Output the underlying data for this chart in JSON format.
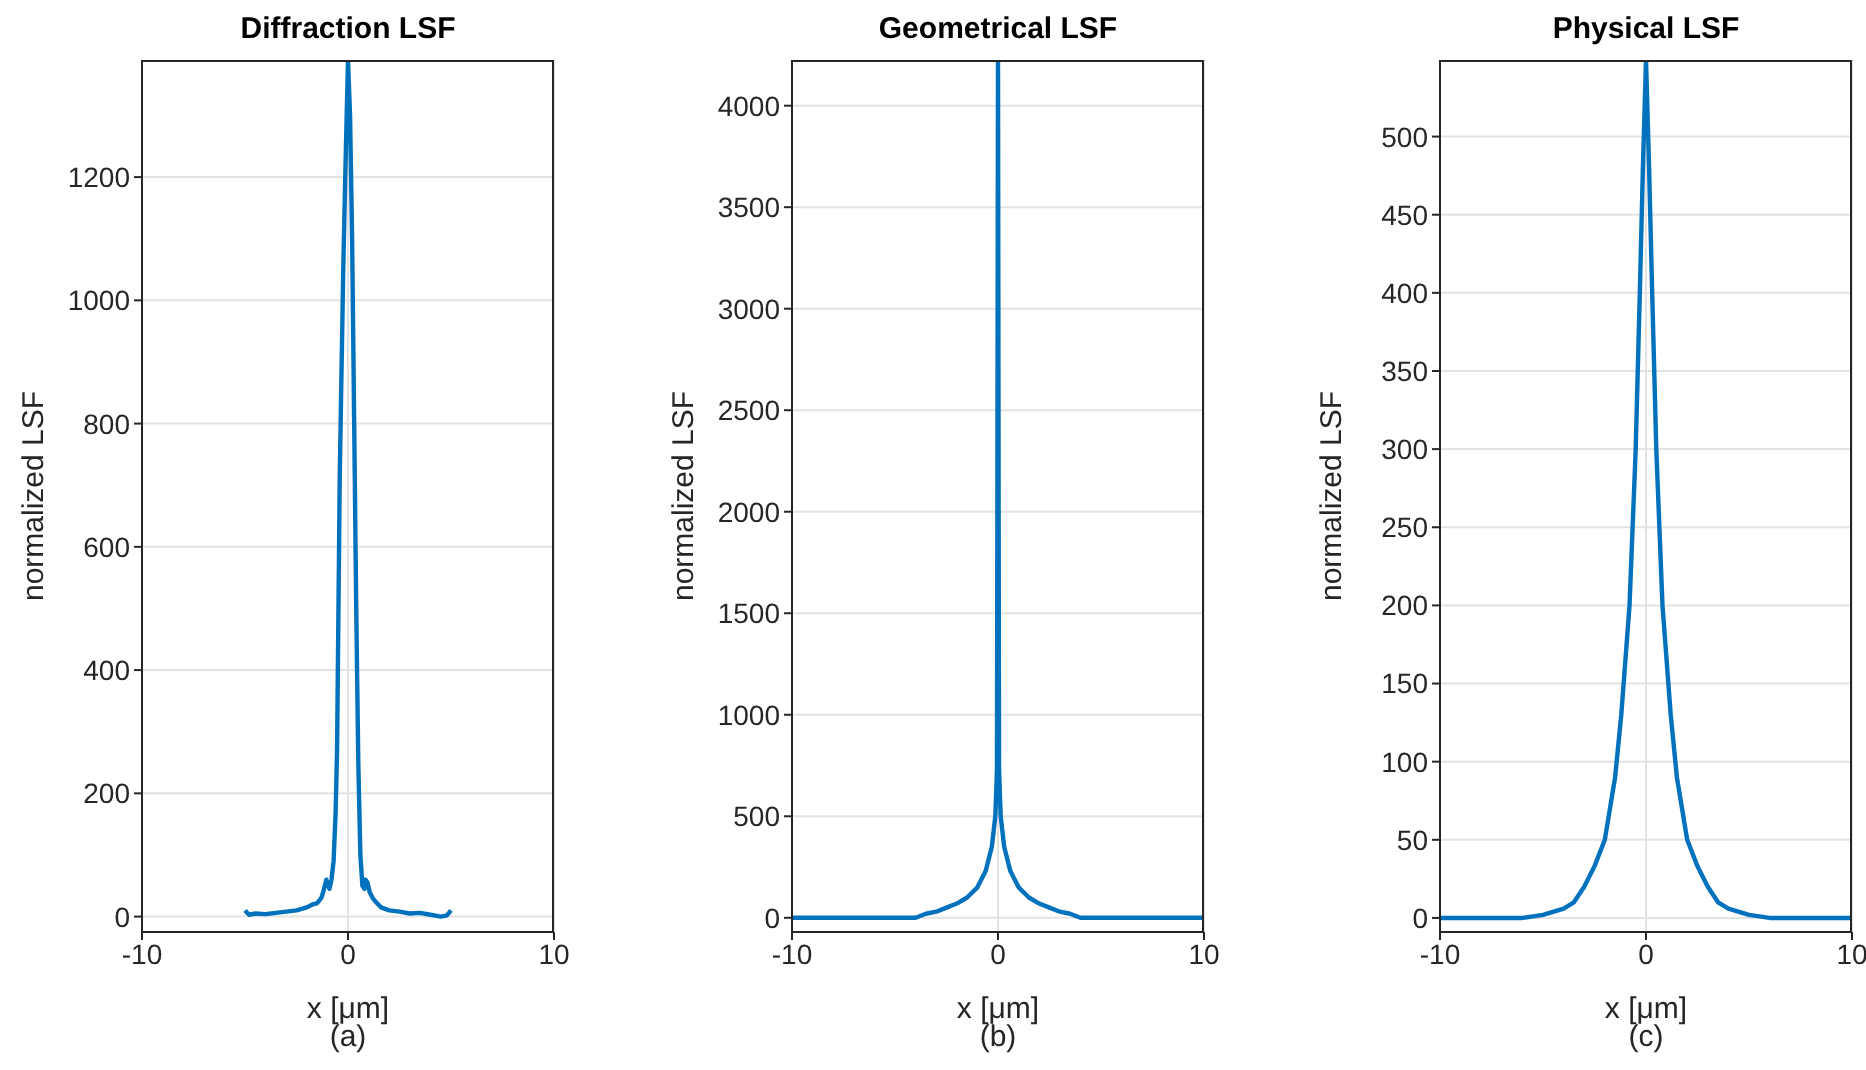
{
  "chart_data": [
    {
      "type": "line",
      "title": "Diffraction LSF",
      "xlabel": "x [μm]",
      "ylabel": "normalized LSF",
      "annotations": [
        "(a)"
      ],
      "xlim": [
        -10,
        10
      ],
      "xticks": [
        -10,
        0,
        10
      ],
      "ylim": [
        -25,
        1390
      ],
      "yticks": [
        0,
        200,
        400,
        600,
        800,
        1000,
        1200
      ],
      "grid": true,
      "series": [
        {
          "color": "#0072bd",
          "x": [
            -5,
            -4.8,
            -4.5,
            -4,
            -3.5,
            -3,
            -2.5,
            -2,
            -1.7,
            -1.5,
            -1.3,
            -1.2,
            -1.05,
            -1,
            -0.9,
            -0.8,
            -0.7,
            -0.6,
            -0.53,
            -0.4,
            -0.23,
            -0.1,
            0,
            0.1,
            0.2,
            0.3,
            0.4,
            0.5,
            0.6,
            0.7,
            0.8,
            0.85,
            0.95,
            1.05,
            1.2,
            1.4,
            1.6,
            2,
            2.5,
            3,
            3.5,
            4,
            4.5,
            4.8,
            5
          ],
          "values": [
            10,
            3,
            5,
            4,
            6,
            8,
            10,
            15,
            20,
            22,
            30,
            40,
            60,
            55,
            45,
            60,
            90,
            170,
            272,
            717,
            1051,
            1250,
            1390,
            1300,
            1100,
            800,
            500,
            250,
            100,
            50,
            45,
            60,
            55,
            40,
            30,
            22,
            15,
            10,
            8,
            5,
            6,
            3,
            0,
            2,
            10
          ]
        }
      ]
    },
    {
      "type": "line",
      "title": "Geometrical LSF",
      "xlabel": "x [μm]",
      "ylabel": "normalized LSF",
      "annotations": [
        "(b)"
      ],
      "xlim": [
        -10,
        10
      ],
      "xticks": [
        -10,
        0,
        10
      ],
      "ylim": [
        -70,
        4225
      ],
      "yticks": [
        0,
        500,
        1000,
        1500,
        2000,
        2500,
        3000,
        3500,
        4000
      ],
      "grid": true,
      "series": [
        {
          "color": "#0072bd",
          "x": [
            -10,
            -5,
            -4,
            -3.5,
            -3,
            -2.5,
            -2,
            -1.5,
            -1,
            -0.6,
            -0.3,
            -0.13,
            -0.05,
            0,
            0.05,
            0.13,
            0.3,
            0.6,
            1,
            1.5,
            2,
            2.5,
            3,
            3.5,
            4,
            5,
            10
          ],
          "values": [
            0,
            0,
            0,
            20,
            30,
            50,
            70,
            100,
            150,
            230,
            350,
            500,
            730,
            4225,
            730,
            500,
            350,
            230,
            150,
            100,
            70,
            50,
            30,
            20,
            0,
            0,
            0
          ]
        }
      ]
    },
    {
      "type": "line",
      "title": "Physical LSF",
      "xlabel": "x [μm]",
      "ylabel": "normalized LSF",
      "annotations": [
        "(c)"
      ],
      "xlim": [
        -10,
        10
      ],
      "xticks": [
        -10,
        0,
        10
      ],
      "ylim": [
        -9,
        549
      ],
      "yticks": [
        0,
        50,
        100,
        150,
        200,
        250,
        300,
        350,
        400,
        450,
        500
      ],
      "grid": true,
      "series": [
        {
          "color": "#0072bd",
          "x": [
            -10,
            -6,
            -5,
            -4,
            -3.5,
            -3,
            -2.5,
            -2,
            -1.5,
            -1.2,
            -0.8,
            -0.5,
            -0.3,
            -0.15,
            0,
            0.15,
            0.3,
            0.5,
            0.8,
            1.2,
            1.5,
            2,
            2.5,
            3,
            3.5,
            4,
            5,
            6,
            10
          ],
          "values": [
            0,
            0,
            2,
            6,
            10,
            20,
            33,
            50,
            90,
            130,
            200,
            300,
            400,
            480,
            549,
            480,
            400,
            300,
            200,
            130,
            90,
            50,
            33,
            20,
            10,
            6,
            2,
            0,
            0
          ]
        }
      ]
    }
  ]
}
